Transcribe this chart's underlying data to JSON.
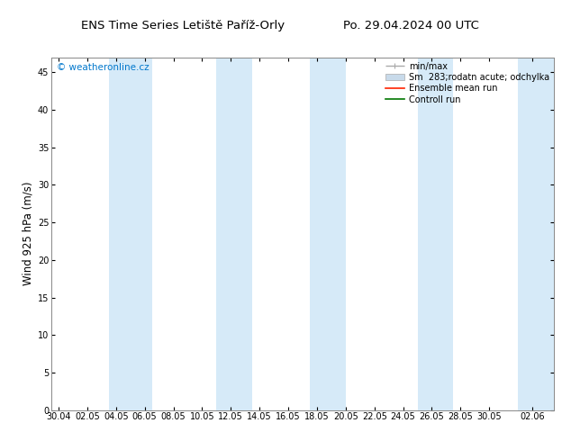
{
  "title_left": "ENS Time Series Letiště Paříž-Orly",
  "title_right": "Po. 29.04.2024 00 UTC",
  "ylabel": "Wind 925 hPa (m/s)",
  "ylim": [
    0,
    47
  ],
  "ytick_vals": [
    0,
    5,
    10,
    15,
    20,
    25,
    30,
    35,
    40,
    45
  ],
  "xtick_labels": [
    "30.04",
    "02.05",
    "04.05",
    "06.05",
    "08.05",
    "10.05",
    "12.05",
    "14.05",
    "16.05",
    "18.05",
    "20.05",
    "22.05",
    "24.05",
    "26.05",
    "28.05",
    "30.05",
    "02.06"
  ],
  "xtick_positions": [
    0,
    2,
    4,
    6,
    8,
    10,
    12,
    14,
    16,
    18,
    20,
    22,
    24,
    26,
    28,
    30,
    33
  ],
  "xlim_min": -0.5,
  "xlim_max": 34.5,
  "blue_bands": [
    [
      3.5,
      6.5
    ],
    [
      11.0,
      13.5
    ],
    [
      17.5,
      20.0
    ],
    [
      25.0,
      27.5
    ],
    [
      32.0,
      34.5
    ]
  ],
  "band_color": "#d6eaf8",
  "background_color": "#ffffff",
  "watermark": "© weatheronline.cz",
  "watermark_color": "#0077cc",
  "legend_minmax_color": "#aaaaaa",
  "legend_sm_color": "#c8daea",
  "legend_ensemble_color": "#ff2200",
  "legend_control_color": "#007700",
  "title_fontsize": 9.5,
  "tick_fontsize": 7,
  "ylabel_fontsize": 8.5,
  "watermark_fontsize": 7.5,
  "legend_fontsize": 7
}
